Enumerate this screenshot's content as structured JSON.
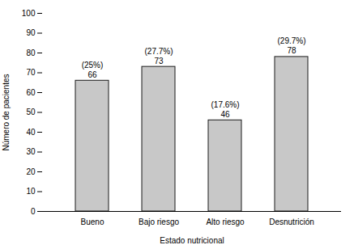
{
  "chart_data": {
    "type": "bar",
    "categories": [
      "Bueno",
      "Bajo riesgo",
      "Alto riesgo",
      "Desnutrición"
    ],
    "values": [
      66,
      73,
      46,
      78
    ],
    "data_labels": true,
    "percent_labels": [
      "(25%)",
      "(27.7%)",
      "(17.6%)",
      "(29.7%)"
    ],
    "color": "#c8c8c8",
    "xlabel": "Estado nutricional",
    "ylabel": "Número de pacientes",
    "ylim": [
      0,
      100
    ],
    "yticks": [
      0,
      10,
      20,
      30,
      40,
      50,
      60,
      70,
      80,
      90,
      100
    ],
    "grid": false
  }
}
